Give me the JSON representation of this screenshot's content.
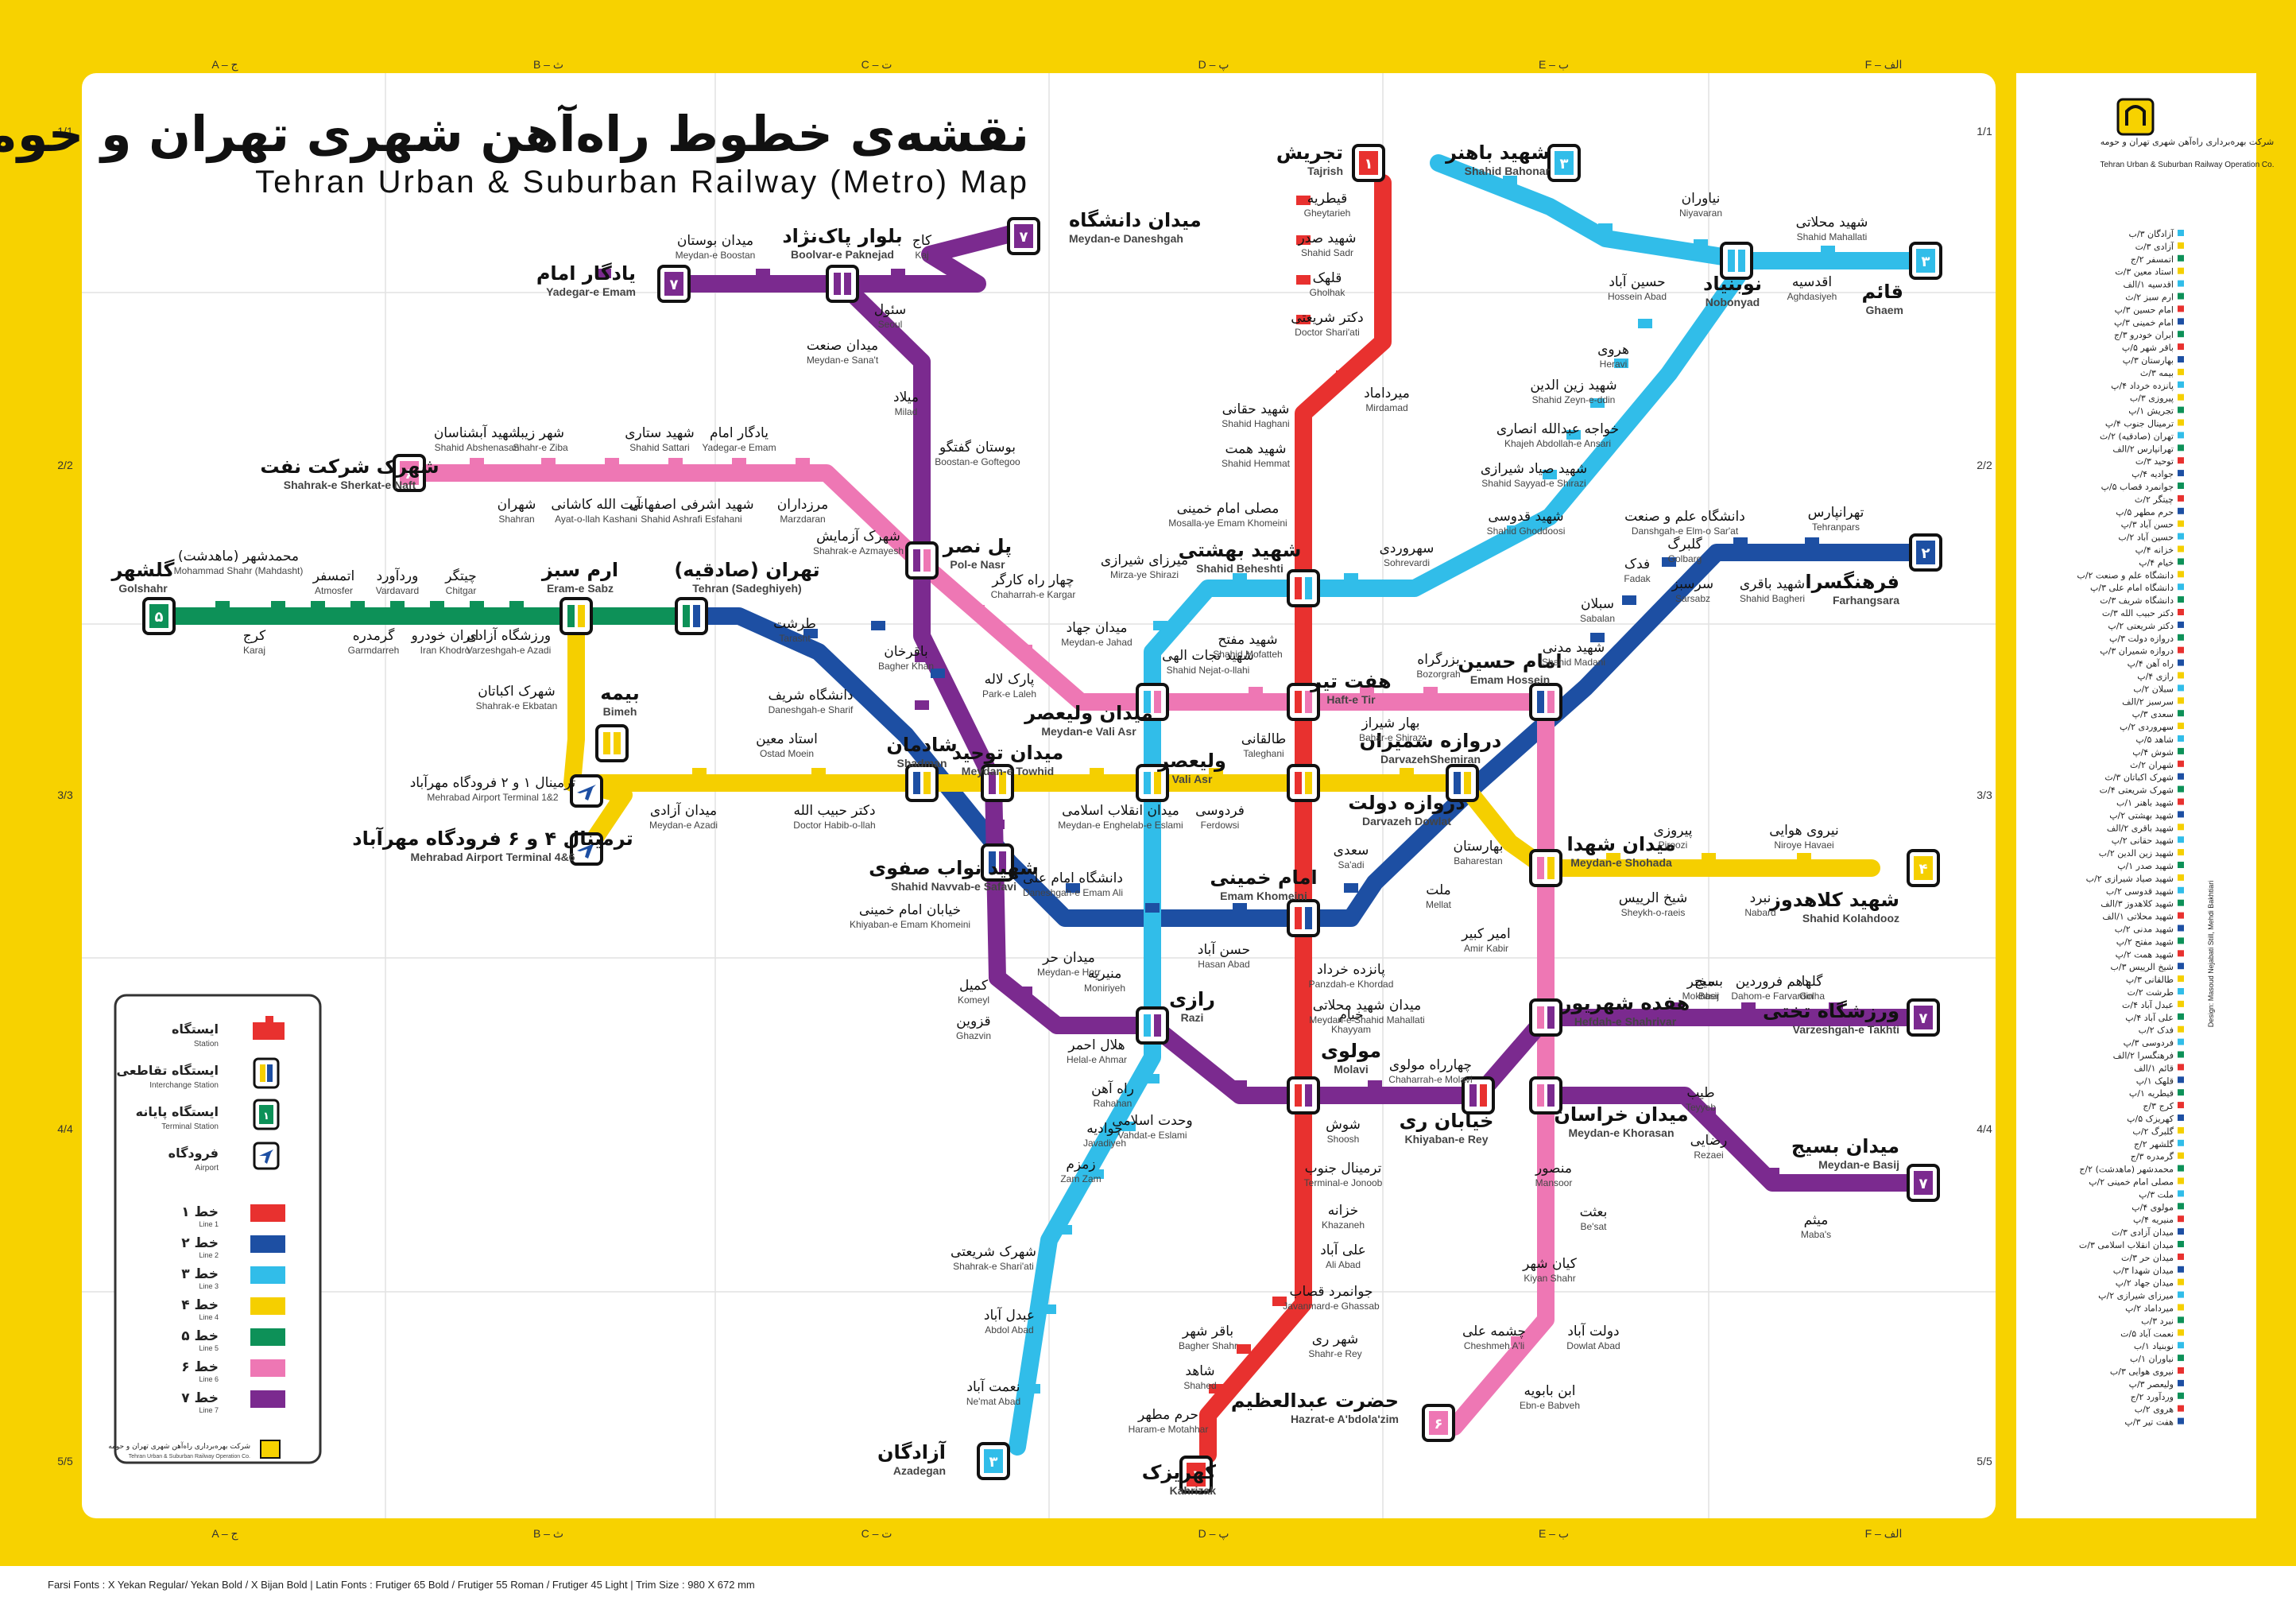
{
  "title": {
    "fa": "نقشه‌ی خطوط راه‌آهن شهری تهران و حومه - مترو",
    "en": "Tehran Urban & Suburban Railway (Metro) Map"
  },
  "grid": {
    "columns": [
      "A – ج",
      "B – ث",
      "C – ت",
      "D – پ",
      "E – ب",
      "F – الف"
    ],
    "rows": [
      "1/1",
      "2/2",
      "3/3",
      "4/4",
      "5/5"
    ]
  },
  "colors": {
    "line1": "#e8312f",
    "line2": "#1d4fa3",
    "line3": "#31bde9",
    "line4": "#f5cf00",
    "line5": "#0d9158",
    "line6": "#ee77b4",
    "line7": "#7b2a8f",
    "frame": "#f7d200"
  },
  "company": {
    "fa": "شرکت بهره‌برداری راه‌آهن شهری تهران و حومه",
    "en": "Tehran Urban & Suburban Railway Operation Co."
  },
  "legend": {
    "symbols": [
      {
        "fa": "ایستگاه",
        "en": "Station",
        "icon": "station-icon"
      },
      {
        "fa": "ایستگاه تقاطعی",
        "en": "Interchange Station",
        "icon": "interchange-icon"
      },
      {
        "fa": "ایستگاه پایانه",
        "en": "Terminal Station",
        "icon": "terminal-icon"
      },
      {
        "fa": "فرودگاه",
        "en": "Airport",
        "icon": "airport-icon"
      }
    ],
    "lines": [
      {
        "fa": "خط ۱",
        "en": "Line 1",
        "color": "#e8312f"
      },
      {
        "fa": "خط ۲",
        "en": "Line 2",
        "color": "#1d4fa3"
      },
      {
        "fa": "خط ۳",
        "en": "Line 3",
        "color": "#31bde9"
      },
      {
        "fa": "خط ۴",
        "en": "Line 4",
        "color": "#f5cf00"
      },
      {
        "fa": "خط ۵",
        "en": "Line 5",
        "color": "#0d9158"
      },
      {
        "fa": "خط ۶",
        "en": "Line 6",
        "color": "#ee77b4"
      },
      {
        "fa": "خط ۷",
        "en": "Line 7",
        "color": "#7b2a8f"
      }
    ]
  },
  "footer": "Farsi Fonts : X Yekan Regular/ Yekan Bold / X Bijan Bold   |   Latin Fonts : Frutiger 65 Bold / Frutiger 55 Roman / Frutiger 45 Light   |   Trim Size : 980 X 672 mm",
  "credit": "Design: Masoud Nejabati  Still, Mehdi Bakhtiari",
  "terminals": [
    {
      "code": "۱",
      "fa": "تجریش",
      "en": "Tajrish"
    },
    {
      "code": "۱",
      "fa": "کهریزک",
      "en": "Kahrizak"
    },
    {
      "code": "۲",
      "fa": "فرهنگسرا",
      "en": "Farhangsara"
    },
    {
      "code": "۳",
      "fa": "قائم",
      "en": "Ghaem"
    },
    {
      "code": "۳",
      "fa": "شهید باهنر",
      "en": "Shahid Bahonar"
    },
    {
      "code": "۳",
      "fa": "آزادگان",
      "en": "Azadegan"
    },
    {
      "code": "۴",
      "fa": "شهید کلاهدوز",
      "en": "Shahid Kolahdooz"
    },
    {
      "code": "۵",
      "fa": "گلشهر",
      "en": "Golshahr"
    },
    {
      "code": "۶",
      "fa": "شهرک شرکت نفت",
      "en": "Shahrak-e Sherkat-e Naft"
    },
    {
      "code": "۶",
      "fa": "حضرت عبدالعظیم",
      "en": "Hazrat-e A'bdola'zim"
    },
    {
      "code": "۷",
      "fa": "یادگار امام",
      "en": "Yadegar-e Emam"
    },
    {
      "code": "۷",
      "fa": "میدان دانشگاه",
      "en": "Meydan-e Daneshgah"
    },
    {
      "code": "۷",
      "fa": "ورزشگاه تختی",
      "en": "Varzeshgah-e Takhti"
    },
    {
      "code": "۷",
      "fa": "میدان بسیج",
      "en": "Meydan-e Basij"
    }
  ],
  "interchanges": [
    {
      "fa": "دروازه دولت",
      "en": "Darvazeh Dowlat"
    },
    {
      "fa": "امام خمینی",
      "en": "Emam Khomeini"
    },
    {
      "fa": "هفت تیر",
      "en": "Haft-e Tir"
    },
    {
      "fa": "شهید بهشتی",
      "en": "Shahid Beheshti"
    },
    {
      "fa": "مولوی",
      "en": "Molavi"
    },
    {
      "fa": "ولیعصر",
      "en": "Vali Asr"
    },
    {
      "fa": "میدان ولیعصر",
      "en": "Meydan-e Vali Asr"
    },
    {
      "fa": "شادمان",
      "en": "Shadman"
    },
    {
      "fa": "میدان توحید",
      "en": "Meydan-e Towhid"
    },
    {
      "fa": "شهید نواب صفوی",
      "en": "Shahid Navvab-e Safavi"
    },
    {
      "fa": "دروازه شمیران",
      "en": "DarvazehShemiran"
    },
    {
      "fa": "امام حسین",
      "en": "Emam Hossein"
    },
    {
      "fa": "میدان شهدا",
      "en": "Meydan-e Shohada"
    },
    {
      "fa": "هفده شهریور",
      "en": "Hefdah-e Shahrivar"
    },
    {
      "fa": "میدان خراسان",
      "en": "Meydan-e Khorasan"
    },
    {
      "fa": "خیابان ری",
      "en": "Khiyaban-e Rey"
    },
    {
      "fa": "رازی",
      "en": "Razi"
    },
    {
      "fa": "پل نصر",
      "en": "Pol-e Nasr"
    },
    {
      "fa": "بلوار پاک‌نژاد",
      "en": "Boolvar-e Paknejad"
    },
    {
      "fa": "تهران (صادقیه)",
      "en": "Tehran (Sadeghiyeh)"
    },
    {
      "fa": "ارم سبز",
      "en": "Eram-e Sabz"
    },
    {
      "fa": "بیمه",
      "en": "Bimeh"
    },
    {
      "fa": "نوبنیاد",
      "en": "Nobonyad"
    }
  ],
  "airports": [
    {
      "fa": "ترمینال ۱ و ۲ فرودگاه مهرآباد",
      "en": "Mehrabad Airport Terminal 1&2"
    },
    {
      "fa": "ترمینال ۴ و ۶ فرودگاه مهرآباد",
      "en": "Mehrabad Airport Terminal 4&6"
    }
  ],
  "stations": [
    {
      "fa": "قیطریه",
      "en": "Gheytarieh"
    },
    {
      "fa": "شهید صدر",
      "en": "Shahid Sadr"
    },
    {
      "fa": "قلهک",
      "en": "Gholhak"
    },
    {
      "fa": "دکتر شریعتی",
      "en": "Doctor Shari'ati"
    },
    {
      "fa": "میرداماد",
      "en": "Mirdamad"
    },
    {
      "fa": "شهید حقانی",
      "en": "Shahid Haghani"
    },
    {
      "fa": "شهید همت",
      "en": "Shahid Hemmat"
    },
    {
      "fa": "مصلی امام خمینی",
      "en": "Mosalla-ye Emam Khomeini"
    },
    {
      "fa": "شهید مفتح",
      "en": "Shahid Mofatteh"
    },
    {
      "fa": "طالقانی",
      "en": "Taleghani"
    },
    {
      "fa": "سعدی",
      "en": "Sa'adi"
    },
    {
      "fa": "پانزده خرداد",
      "en": "Panzdah-e Khordad"
    },
    {
      "fa": "خیام",
      "en": "Khayyam"
    },
    {
      "fa": "شوش",
      "en": "Shoosh"
    },
    {
      "fa": "ترمینال جنوب",
      "en": "Terminal-e Jonoob"
    },
    {
      "fa": "خزانه",
      "en": "Khazaneh"
    },
    {
      "fa": "علی آباد",
      "en": "Ali Abad"
    },
    {
      "fa": "جوانمرد قصاب",
      "en": "Javanmard-e Ghassab"
    },
    {
      "fa": "شهر ری",
      "en": "Shahr-e Rey"
    },
    {
      "fa": "باقر شهر",
      "en": "Bagher Shahr"
    },
    {
      "fa": "شاهد",
      "en": "Shahed"
    },
    {
      "fa": "حرم مطهر",
      "en": "Haram-e Motahhar"
    },
    {
      "fa": "تهرانپارس",
      "en": "Tehranpars"
    },
    {
      "fa": "شهید باقری",
      "en": "Shahid Bagheri"
    },
    {
      "fa": "سرسبز",
      "en": "Sarsabz"
    },
    {
      "fa": "دانشگاه علم و صنعت",
      "en": "Danshgah-e Elm-o Sar'at"
    },
    {
      "fa": "گلبرگ",
      "en": "Golbarg"
    },
    {
      "fa": "فدک",
      "en": "Fadak"
    },
    {
      "fa": "سبلان",
      "en": "Sabalan"
    },
    {
      "fa": "شهید مدنی",
      "en": "Shahid Madani"
    },
    {
      "fa": "بهارستان",
      "en": "Baharestan"
    },
    {
      "fa": "ملت",
      "en": "Mellat"
    },
    {
      "fa": "حسن آباد",
      "en": "Hasan Abad"
    },
    {
      "fa": "میدان حر",
      "en": "Meydan-e Horr"
    },
    {
      "fa": "دانشگاه امام علی",
      "en": "Daneshgah-e Emam Ali"
    },
    {
      "fa": "طرشت",
      "en": "Tarasht"
    },
    {
      "fa": "دانشگاه شریف",
      "en": "Daneshgah-e Sharif"
    },
    {
      "fa": "شهید محلاتی",
      "en": "Shahid Mahallati"
    },
    {
      "fa": "اقدسیه",
      "en": "Aghdasiyeh"
    },
    {
      "fa": "نیاوران",
      "en": "Niyavaran"
    },
    {
      "fa": "حسین آباد",
      "en": "Hossein Abad"
    },
    {
      "fa": "هروی",
      "en": "Heravi"
    },
    {
      "fa": "شهید زین الدین",
      "en": "Shahid Zeyn-e-ddin"
    },
    {
      "fa": "خواجه عبدالله انصاری",
      "en": "Khajeh Abdollah-e Ansari"
    },
    {
      "fa": "شهید صیاد شیرازی",
      "en": "Shahid Sayyad-e Shirazi"
    },
    {
      "fa": "شهید قدوسی",
      "en": "Shahid Ghoddoosi"
    },
    {
      "fa": "سهروردی",
      "en": "Sohrevardi"
    },
    {
      "fa": "میرزای شیرازی",
      "en": "Mirza-ye Shirazi"
    },
    {
      "fa": "میدان جهاد",
      "en": "Meydan-e Jahad"
    },
    {
      "fa": "شهید نجات الهی",
      "en": "Shahid Nejat-o-llahi"
    },
    {
      "fa": "منیریه",
      "en": "Moniriyeh"
    },
    {
      "fa": "هلال احمر",
      "en": "Helal-e Ahmar"
    },
    {
      "fa": "راه آهن",
      "en": "Rahahan"
    },
    {
      "fa": "جوادیه",
      "en": "Javadiyeh"
    },
    {
      "fa": "زمزم",
      "en": "Zam Zam"
    },
    {
      "fa": "شهرک شریعتی",
      "en": "Shahrak-e Shari'ati"
    },
    {
      "fa": "عبدل آباد",
      "en": "Abdol Abad"
    },
    {
      "fa": "نعمت آباد",
      "en": "Ne'mat Abad"
    },
    {
      "fa": "کرج",
      "en": "Karaj"
    },
    {
      "fa": "محمدشهر (ماهدشت)",
      "en": "Mohammad Shahr (Mahdasht)"
    },
    {
      "fa": "اتمسفر",
      "en": "Atmosfer"
    },
    {
      "fa": "گرمدره",
      "en": "Garmdarreh"
    },
    {
      "fa": "وردآورد",
      "en": "Vardavard"
    },
    {
      "fa": "ایران خودرو",
      "en": "Iran Khodro"
    },
    {
      "fa": "چیتگر",
      "en": "Chitgar"
    },
    {
      "fa": "ورزشگاه آزادی",
      "en": "Varzeshgah-e Azadi"
    },
    {
      "fa": "شهرک اکباتان",
      "en": "Shahrak-e Ekbatan"
    },
    {
      "fa": "استاد معین",
      "en": "Ostad Moein"
    },
    {
      "fa": "میدان آزادی",
      "en": "Meydan-e Azadi"
    },
    {
      "fa": "دکتر حبیب الله",
      "en": "Doctor Habib-o-llah"
    },
    {
      "fa": "میدان انقلاب اسلامی",
      "en": "Meydan-e Enghelab-e Eslami"
    },
    {
      "fa": "فردوسی",
      "en": "Ferdowsi"
    },
    {
      "fa": "امیر کبیر",
      "en": "Amir Kabir"
    },
    {
      "fa": "پیروزی",
      "en": "Piroozi"
    },
    {
      "fa": "نیروی هوایی",
      "en": "Niroye Havaei"
    },
    {
      "fa": "شیخ الرییس",
      "en": "Sheykh-o-raeis"
    },
    {
      "fa": "نبرد",
      "en": "Nabard"
    },
    {
      "fa": "شهید آبشناسان",
      "en": "Shahid Abshenasan"
    },
    {
      "fa": "شهر زیبا",
      "en": "Shahr-e Ziba"
    },
    {
      "fa": "شهید ستاری",
      "en": "Shahid Sattari"
    },
    {
      "fa": "یادگار امام",
      "en": "Yadegar-e Emam"
    },
    {
      "fa": "شهران",
      "en": "Shahran"
    },
    {
      "fa": "آیت الله کاشانی",
      "en": "Ayat-o-llah Kashani"
    },
    {
      "fa": "شهید اشرفی اصفهانی",
      "en": "Shahid Ashrafi Esfahani"
    },
    {
      "fa": "مرزداران",
      "en": "Marzdaran"
    },
    {
      "fa": "شهرک آزمایش",
      "en": "Shahrak-e Azmayesh"
    },
    {
      "fa": "چهار راه کارگر",
      "en": "Chaharrah-e Kargar"
    },
    {
      "fa": "پارک لاله",
      "en": "Park-e Laleh"
    },
    {
      "fa": "بوستان گفتگو",
      "en": "Boostan-e Goftegoo"
    },
    {
      "fa": "میلاد",
      "en": "Milad"
    },
    {
      "fa": "میدان صنعت",
      "en": "Meydan-e Sana't"
    },
    {
      "fa": "سئول",
      "en": "Seoul"
    },
    {
      "fa": "کاج",
      "en": "Kaj"
    },
    {
      "fa": "میدان بوستان",
      "en": "Meydan-e Boostan"
    },
    {
      "fa": "باقرخان",
      "en": "Bagher Khan"
    },
    {
      "fa": "خیابان امام خمینی",
      "en": "Khiyaban-e Emam Khomeini"
    },
    {
      "fa": "کمیل",
      "en": "Komeyl"
    },
    {
      "fa": "قزوین",
      "en": "Ghazvin"
    },
    {
      "fa": "وحدت اسلامی",
      "en": "Vahdat-e Eslami"
    },
    {
      "fa": "چهارراه مولوی",
      "en": "Chaharrah-e Molavi"
    },
    {
      "fa": "میدان شهید محلاتی",
      "en": "Meydan-e Shahid Mahallati"
    },
    {
      "fa": "مخبر",
      "en": "Mokhber"
    },
    {
      "fa": "دهم فروردین",
      "en": "Dahom-e Farvardin"
    },
    {
      "fa": "گلها",
      "en": "Golha"
    },
    {
      "fa": "بسیج",
      "en": "Basij"
    },
    {
      "fa": "طیب",
      "en": "Teyyeb"
    },
    {
      "fa": "رضایی",
      "en": "Rezaei"
    },
    {
      "fa": "میثم",
      "en": "Maba's"
    },
    {
      "fa": "بعثت",
      "en": "Be'sat"
    },
    {
      "fa": "کیان شهر",
      "en": "Kiyan Shahr"
    },
    {
      "fa": "دولت آباد",
      "en": "Dowlat Abad"
    },
    {
      "fa": "چشمه علی",
      "en": "Cheshmeh A'li"
    },
    {
      "fa": "ابن بابویه",
      "en": "Ebn-e Babveh"
    },
    {
      "fa": "منصور",
      "en": "Mansoor"
    },
    {
      "fa": "بهار شیراز",
      "en": "Bahar-e Shiraz"
    },
    {
      "fa": "بزرگراه",
      "en": "Bozorgrah"
    }
  ],
  "index_list": [
    "آزادگان ۳/ب",
    "آزادی ۳/ت",
    "اتمسفر ۲/ج",
    "استاد معین ۳/ت",
    "اقدسیه ۱/الف",
    "ارم سبز ۲/ث",
    "امام حسین ۳/پ",
    "امام خمینی ۳/پ",
    "ایران خودرو ۳/ج",
    "باقر شهر ۵/پ",
    "بهارستان ۳/پ",
    "بیمه ۳/ث",
    "پانزده خرداد ۴/پ",
    "پیروزی ۳/ب",
    "تجریش ۱/پ",
    "ترمینال جنوب ۴/پ",
    "تهران (صادقیه) ۲/ث",
    "تهرانپارس ۲/الف",
    "توحید ۳/ت",
    "جوادیه ۴/پ",
    "جوانمرد قصاب ۵/پ",
    "چیتگر ۲/ث",
    "حرم مطهر ۵/پ",
    "حسن آباد ۳/پ",
    "حسین آباد ۲/ب",
    "خزانه ۴/پ",
    "خیام ۴/پ",
    "دانشگاه علم و صنعت ۲/ب",
    "دانشگاه امام علی ۳/پ",
    "دانشگاه شریف ۳/ت",
    "دکتر حبیب الله ۳/ت",
    "دکتر شریعتی ۲/پ",
    "دروازه دولت ۳/پ",
    "دروازه شمیران ۳/پ",
    "راه آهن ۴/پ",
    "رازی ۴/پ",
    "سبلان ۲/ب",
    "سرسبز ۲/الف",
    "سعدی ۳/پ",
    "سهروردی ۲/پ",
    "شاهد ۵/پ",
    "شوش ۴/پ",
    "شهران ۲/ث",
    "شهرک اکباتان ۳/ث",
    "شهرک شریعتی ۴/ت",
    "شهید باهنر ۱/ب",
    "شهید بهشتی ۲/پ",
    "شهید باقری ۲/الف",
    "شهید حقانی ۲/پ",
    "شهید زین الدین ۲/ب",
    "شهید صدر ۱/پ",
    "شهید صیاد شیرازی ۲/ب",
    "شهید قدوسی ۲/ب",
    "شهید کلاهدوز ۳/الف",
    "شهید محلاتی ۱/الف",
    "شهید مدنی ۲/ب",
    "شهید مفتح ۲/پ",
    "شهید همت ۲/پ",
    "شیخ الرییس ۳/ب",
    "طالقانی ۳/پ",
    "طرشت ۲/ت",
    "عبدل آباد ۴/ت",
    "علی آباد ۴/پ",
    "فدک ۲/ب",
    "فردوسی ۳/پ",
    "فرهنگسرا ۲/الف",
    "قائم ۱/الف",
    "قلهک ۱/پ",
    "قیطریه ۱/پ",
    "کرج ۳/ج",
    "کهریزک ۵/پ",
    "گلبرگ ۲/ب",
    "گلشهر ۲/ج",
    "گرمدره ۳/ج",
    "محمدشهر (ماهدشت) ۲/ج",
    "مصلی امام خمینی ۲/پ",
    "ملت ۳/پ",
    "مولوی ۴/پ",
    "منیریه ۴/پ",
    "میدان آزادی ۳/ت",
    "میدان انقلاب اسلامی ۳/ت",
    "میدان حر ۳/ت",
    "میدان شهدا ۳/ب",
    "میدان جهاد ۲/پ",
    "میرزای شیرازی ۲/پ",
    "میرداماد ۲/پ",
    "نبرد ۳/ب",
    "نعمت آباد ۵/ت",
    "نوبنیاد ۱/ب",
    "نیاوران ۱/ب",
    "نیروی هوایی ۳/ب",
    "ولیعصر ۳/پ",
    "وردآورد ۲/ج",
    "هروی ۲/ب",
    "هفت تیر ۳/پ"
  ]
}
